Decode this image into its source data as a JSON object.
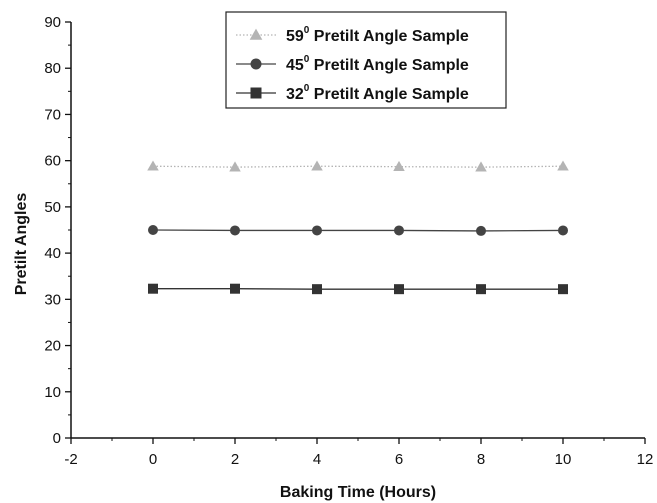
{
  "chart_data": {
    "type": "line",
    "xlabel": "Baking Time (Hours)",
    "ylabel": "Pretilt Angles",
    "xlim": [
      -2,
      12
    ],
    "ylim": [
      0,
      90
    ],
    "xticks": [
      "-2",
      "0",
      "2",
      "4",
      "6",
      "8",
      "10",
      "12"
    ],
    "yticks": [
      "0",
      "10",
      "20",
      "30",
      "40",
      "50",
      "60",
      "70",
      "80",
      "90"
    ],
    "grid": false,
    "legend_position": "top-center",
    "x": [
      0,
      2,
      4,
      6,
      8,
      10
    ],
    "series": [
      {
        "name": "59⁰ Pretilt Angle Sample",
        "name_base": "59",
        "name_sup": "0",
        "name_rest": " Pretilt Angle Sample",
        "marker": "triangle",
        "color": "#b4b4b4",
        "line_style": "dotted",
        "values": [
          58.8,
          58.6,
          58.8,
          58.7,
          58.6,
          58.8
        ]
      },
      {
        "name": "45⁰ Pretilt Angle Sample",
        "name_base": "45",
        "name_sup": "0",
        "name_rest": " Pretilt Angle Sample",
        "marker": "circle",
        "color": "#444444",
        "line_style": "solid",
        "values": [
          45.0,
          44.9,
          44.9,
          44.9,
          44.8,
          44.9
        ]
      },
      {
        "name": "32⁰ Pretilt Angle Sample",
        "name_base": "32",
        "name_sup": "0",
        "name_rest": " Pretilt Angle Sample",
        "marker": "square",
        "color": "#333333",
        "line_style": "solid",
        "values": [
          32.3,
          32.3,
          32.2,
          32.2,
          32.2,
          32.2
        ]
      }
    ]
  }
}
